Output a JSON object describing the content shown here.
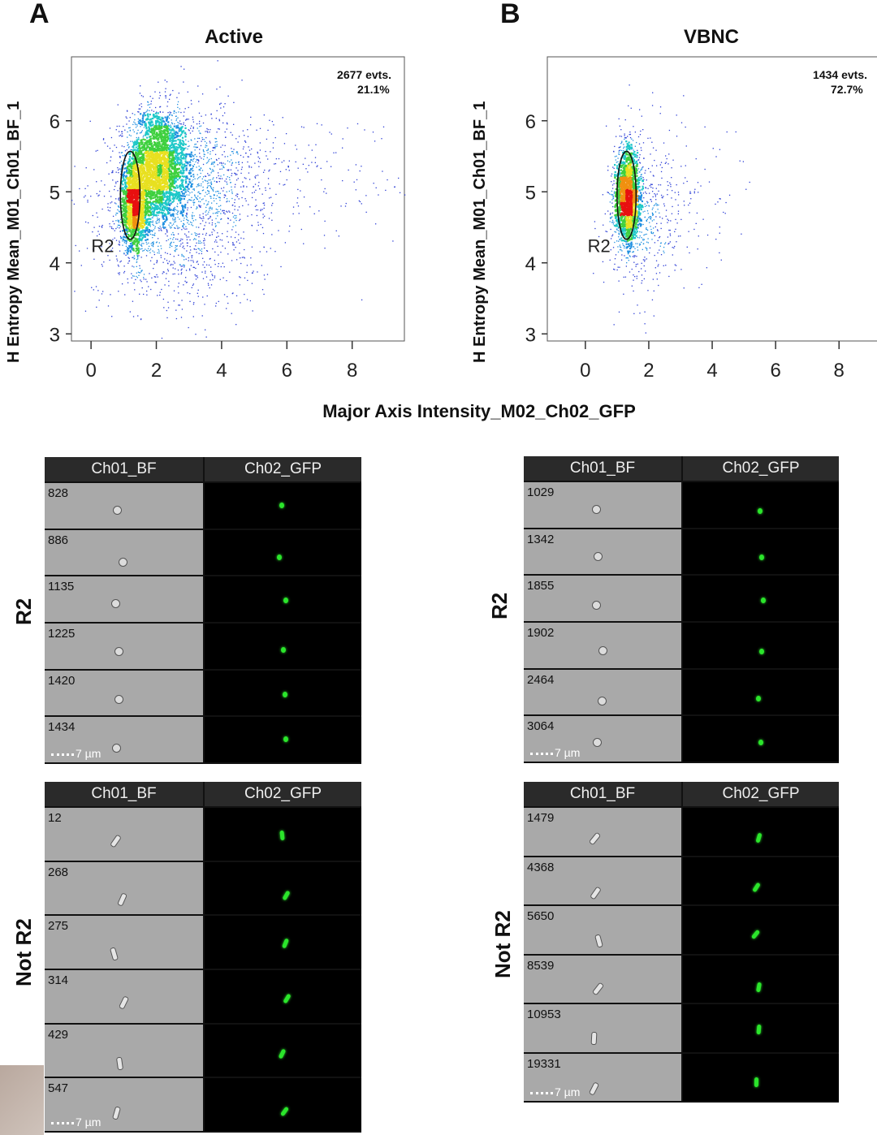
{
  "panels": {
    "A": {
      "letter": "A",
      "title": "Active",
      "events": "2677 evts.",
      "percent": "21.1%",
      "gate": "R2"
    },
    "B": {
      "letter": "B",
      "title": "VBNC",
      "events": "1434 evts.",
      "percent": "72.7%",
      "gate": "R2"
    }
  },
  "axes": {
    "ylabel": "H Entropy Mean_M01_Ch01_BF_1",
    "xlabel": "Major Axis Intensity_M02_Ch02_GFP",
    "yticks": [
      "3",
      "4",
      "5",
      "6"
    ],
    "xticks": [
      "0",
      "2",
      "4",
      "6",
      "8"
    ]
  },
  "chart_data": [
    {
      "type": "scatter",
      "title": "Active",
      "xlabel": "Major Axis Intensity_M02_Ch02_GFP",
      "ylabel": "H Entropy Mean_M01_Ch01_BF_1",
      "xlim": [
        -0.6,
        9.6
      ],
      "ylim": [
        2.9,
        6.9
      ],
      "annotation": [
        "2677 evts.",
        "21.1%"
      ],
      "gate": {
        "name": "R2",
        "shape": "ellipse",
        "center": [
          1.2,
          4.95
        ],
        "radii": [
          0.3,
          0.62
        ]
      },
      "density_cores": [
        {
          "x": 2.0,
          "y": 5.4,
          "sx": 0.45,
          "sy": 0.4,
          "n": 2200
        },
        {
          "x": 1.3,
          "y": 4.8,
          "sx": 0.22,
          "sy": 0.3,
          "n": 1300
        },
        {
          "x": 3.0,
          "y": 5.2,
          "sx": 1.2,
          "sy": 0.5,
          "n": 1200
        },
        {
          "x": 2.5,
          "y": 4.3,
          "sx": 1.3,
          "sy": 0.55,
          "n": 700
        },
        {
          "x": 6.5,
          "y": 5.2,
          "sx": 1.8,
          "sy": 0.5,
          "n": 150
        }
      ],
      "grid": false
    },
    {
      "type": "scatter",
      "title": "VBNC",
      "xlabel": "Major Axis Intensity_M02_Ch02_GFP",
      "ylabel": "H Entropy Mean_M01_Ch01_BF_1",
      "xlim": [
        -1.2,
        9.3
      ],
      "ylim": [
        2.9,
        6.9
      ],
      "annotation": [
        "1434 evts.",
        "72.7%"
      ],
      "gate": {
        "name": "R2",
        "shape": "ellipse",
        "center": [
          1.3,
          4.95
        ],
        "radii": [
          0.3,
          0.62
        ]
      },
      "density_cores": [
        {
          "x": 1.3,
          "y": 4.95,
          "sx": 0.2,
          "sy": 0.35,
          "n": 1600
        },
        {
          "x": 1.8,
          "y": 4.7,
          "sx": 0.6,
          "sy": 0.6,
          "n": 400
        },
        {
          "x": 3.0,
          "y": 4.8,
          "sx": 1.0,
          "sy": 0.6,
          "n": 120
        }
      ],
      "grid": false
    }
  ],
  "galleries": {
    "channels": [
      "Ch01_BF",
      "Ch02_GFP"
    ],
    "scale_bar": "7 µm",
    "row_labels": {
      "gated": "R2",
      "not_gated": "Not R2"
    },
    "A_R2": [
      "828",
      "886",
      "1135",
      "1225",
      "1420",
      "1434"
    ],
    "A_not": [
      "12",
      "268",
      "275",
      "314",
      "429",
      "547"
    ],
    "B_R2": [
      "1029",
      "1342",
      "1855",
      "1902",
      "2464",
      "3064"
    ],
    "B_not": [
      "1479",
      "4368",
      "5650",
      "8539",
      "10953",
      "19331"
    ]
  }
}
